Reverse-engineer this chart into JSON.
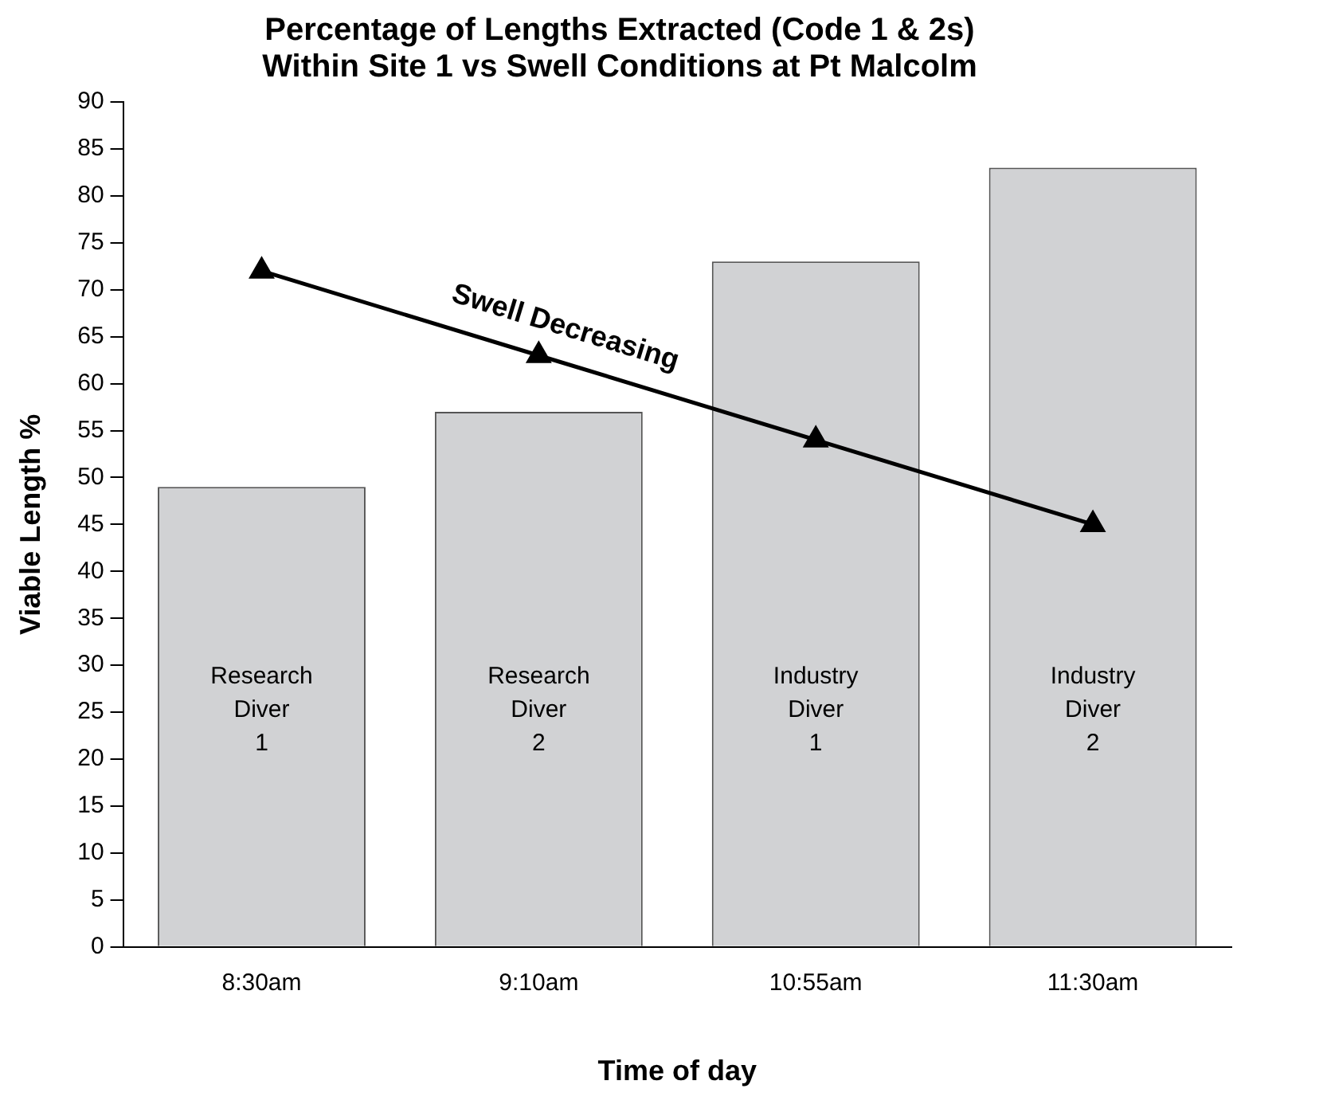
{
  "chart_data": {
    "type": "bar",
    "title": "Percentage of Lengths Extracted (Code 1 & 2s)\nWithin Site 1 vs Swell Conditions at Pt Malcolm",
    "xlabel": "Time of day",
    "ylabel": "Viable Length %",
    "categories": [
      "8:30am",
      "9:10am",
      "10:55am",
      "11:30am"
    ],
    "series": [
      {
        "color": "#d1d2d4",
        "values": [
          49,
          57,
          73,
          83
        ]
      },
      {
        "type": "line",
        "color": "#000000",
        "marker": "triangle",
        "values": [
          72,
          63,
          54,
          45
        ]
      }
    ],
    "ylim": [
      0,
      90
    ],
    "yticks": [
      0,
      5,
      10,
      15,
      20,
      25,
      30,
      35,
      40,
      45,
      50,
      55,
      60,
      65,
      70,
      75,
      80,
      85,
      90
    ],
    "grid": false,
    "legend": false,
    "annotations": [
      "Swell Decreasing",
      "Research\nDiver\n1",
      "Research\nDiver\n2",
      "Industry\nDiver\n1",
      "Industry\nDiver\n2"
    ]
  }
}
